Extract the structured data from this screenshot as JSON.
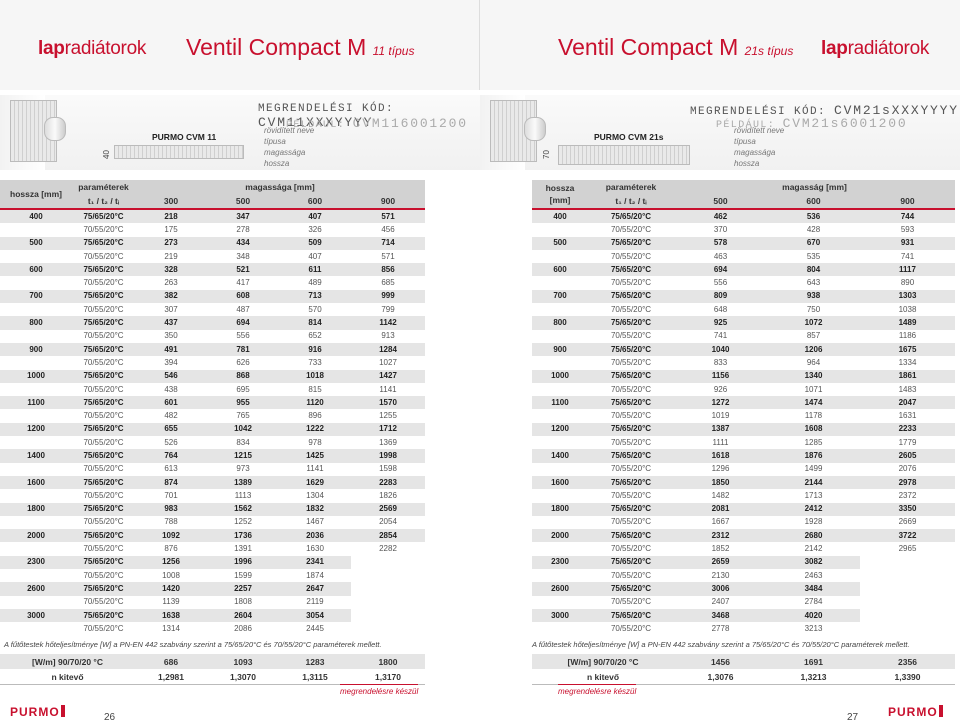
{
  "left": {
    "brand_bold": "lap",
    "brand_rest": "radiátorok",
    "title_main": "Ventil Compact M",
    "title_type": "11 típus",
    "order_label": "MEGRENDELÉSI KÓD:",
    "order_code": "CVM11XXXYYYY",
    "example_label": "PÉLDÁUL:",
    "example_code": "CVM116001200",
    "model": "PURMO CVM 11",
    "code_notes": [
      "rövidített neve",
      "típusa",
      "magassága",
      "hossza"
    ],
    "dim_label": "40",
    "head": {
      "length": "hossza [mm]",
      "param": "paraméterek",
      "tsub": "t₁ / t₂ / tᵢ",
      "height": "magassága [mm]"
    },
    "heights": [
      "300",
      "500",
      "600",
      "900"
    ],
    "rows": [
      {
        "len": "400",
        "p75": "75/65/20°C",
        "v75": [
          "218",
          "347",
          "407",
          "571"
        ],
        "p70": "70/55/20°C",
        "v70": [
          "175",
          "278",
          "326",
          "456"
        ]
      },
      {
        "len": "500",
        "p75": "75/65/20°C",
        "v75": [
          "273",
          "434",
          "509",
          "714"
        ],
        "p70": "70/55/20°C",
        "v70": [
          "219",
          "348",
          "407",
          "571"
        ]
      },
      {
        "len": "600",
        "p75": "75/65/20°C",
        "v75": [
          "328",
          "521",
          "611",
          "856"
        ],
        "p70": "70/55/20°C",
        "v70": [
          "263",
          "417",
          "489",
          "685"
        ]
      },
      {
        "len": "700",
        "p75": "75/65/20°C",
        "v75": [
          "382",
          "608",
          "713",
          "999"
        ],
        "p70": "70/55/20°C",
        "v70": [
          "307",
          "487",
          "570",
          "799"
        ]
      },
      {
        "len": "800",
        "p75": "75/65/20°C",
        "v75": [
          "437",
          "694",
          "814",
          "1142"
        ],
        "p70": "70/55/20°C",
        "v70": [
          "350",
          "556",
          "652",
          "913"
        ]
      },
      {
        "len": "900",
        "p75": "75/65/20°C",
        "v75": [
          "491",
          "781",
          "916",
          "1284"
        ],
        "p70": "70/55/20°C",
        "v70": [
          "394",
          "626",
          "733",
          "1027"
        ]
      },
      {
        "len": "1000",
        "p75": "75/65/20°C",
        "v75": [
          "546",
          "868",
          "1018",
          "1427"
        ],
        "p70": "70/55/20°C",
        "v70": [
          "438",
          "695",
          "815",
          "1141"
        ]
      },
      {
        "len": "1100",
        "p75": "75/65/20°C",
        "v75": [
          "601",
          "955",
          "1120",
          "1570"
        ],
        "p70": "70/55/20°C",
        "v70": [
          "482",
          "765",
          "896",
          "1255"
        ]
      },
      {
        "len": "1200",
        "p75": "75/65/20°C",
        "v75": [
          "655",
          "1042",
          "1222",
          "1712"
        ],
        "p70": "70/55/20°C",
        "v70": [
          "526",
          "834",
          "978",
          "1369"
        ]
      },
      {
        "len": "1400",
        "p75": "75/65/20°C",
        "v75": [
          "764",
          "1215",
          "1425",
          "1998"
        ],
        "p70": "70/55/20°C",
        "v70": [
          "613",
          "973",
          "1141",
          "1598"
        ]
      },
      {
        "len": "1600",
        "p75": "75/65/20°C",
        "v75": [
          "874",
          "1389",
          "1629",
          "2283"
        ],
        "p70": "70/55/20°C",
        "v70": [
          "701",
          "1113",
          "1304",
          "1826"
        ]
      },
      {
        "len": "1800",
        "p75": "75/65/20°C",
        "v75": [
          "983",
          "1562",
          "1832",
          "2569"
        ],
        "p70": "70/55/20°C",
        "v70": [
          "788",
          "1252",
          "1467",
          "2054"
        ]
      },
      {
        "len": "2000",
        "p75": "75/65/20°C",
        "v75": [
          "1092",
          "1736",
          "2036",
          "2854"
        ],
        "p70": "70/55/20°C",
        "v70": [
          "876",
          "1391",
          "1630",
          "2282"
        ]
      },
      {
        "len": "2300",
        "p75": "75/65/20°C",
        "v75": [
          "1256",
          "1996",
          "2341",
          ""
        ],
        "p70": "70/55/20°C",
        "v70": [
          "1008",
          "1599",
          "1874",
          ""
        ]
      },
      {
        "len": "2600",
        "p75": "75/65/20°C",
        "v75": [
          "1420",
          "2257",
          "2647",
          ""
        ],
        "p70": "70/55/20°C",
        "v70": [
          "1139",
          "1808",
          "2119",
          ""
        ]
      },
      {
        "len": "3000",
        "p75": "75/65/20°C",
        "v75": [
          "1638",
          "2604",
          "3054",
          ""
        ],
        "p70": "70/55/20°C",
        "v70": [
          "1314",
          "2086",
          "2445",
          ""
        ]
      }
    ],
    "note": "A fűtőtestek hőteljesítménye [W] a PN-EN 442 szabvány szerint a 75/65/20°C és 70/55/20°C paraméterek mellett.",
    "footer": {
      "w_label": "[W/m] 90/70/20 °C",
      "w_vals": [
        "686",
        "1093",
        "1283",
        "1800"
      ],
      "n_label": "n kitevő",
      "n_vals": [
        "1,2981",
        "1,3070",
        "1,3115",
        "1,3170"
      ]
    },
    "on_demand": "megrendelésre készül",
    "logo": "PURMO",
    "page_no": "26"
  },
  "right": {
    "brand_bold": "lap",
    "brand_rest": "radiátorok",
    "title_main": "Ventil Compact M",
    "title_type": "21s típus",
    "order_label": "MEGRENDELÉSI KÓD:",
    "order_code": "CVM21sXXXYYYY",
    "example_label": "PÉLDÁUL:",
    "example_code": "CVM21s6001200",
    "model": "PURMO CVM 21s",
    "code_notes": [
      "rövidített neve",
      "típusa",
      "magassága",
      "hossza"
    ],
    "dim_label": "70",
    "head": {
      "length": "hossza [mm]",
      "param": "paraméterek",
      "tsub": "t₁ / t₂ / tᵢ",
      "height": "magasság [mm]"
    },
    "heights": [
      "500",
      "600",
      "900"
    ],
    "rows": [
      {
        "len": "400",
        "p75": "75/65/20°C",
        "v75": [
          "462",
          "536",
          "744"
        ],
        "p70": "70/55/20°C",
        "v70": [
          "370",
          "428",
          "593"
        ]
      },
      {
        "len": "500",
        "p75": "75/65/20°C",
        "v75": [
          "578",
          "670",
          "931"
        ],
        "p70": "70/55/20°C",
        "v70": [
          "463",
          "535",
          "741"
        ]
      },
      {
        "len": "600",
        "p75": "75/65/20°C",
        "v75": [
          "694",
          "804",
          "1117"
        ],
        "p70": "70/55/20°C",
        "v70": [
          "556",
          "643",
          "890"
        ]
      },
      {
        "len": "700",
        "p75": "75/65/20°C",
        "v75": [
          "809",
          "938",
          "1303"
        ],
        "p70": "70/55/20°C",
        "v70": [
          "648",
          "750",
          "1038"
        ]
      },
      {
        "len": "800",
        "p75": "75/65/20°C",
        "v75": [
          "925",
          "1072",
          "1489"
        ],
        "p70": "70/55/20°C",
        "v70": [
          "741",
          "857",
          "1186"
        ]
      },
      {
        "len": "900",
        "p75": "75/65/20°C",
        "v75": [
          "1040",
          "1206",
          "1675"
        ],
        "p70": "70/55/20°C",
        "v70": [
          "833",
          "964",
          "1334"
        ]
      },
      {
        "len": "1000",
        "p75": "75/65/20°C",
        "v75": [
          "1156",
          "1340",
          "1861"
        ],
        "p70": "70/55/20°C",
        "v70": [
          "926",
          "1071",
          "1483"
        ]
      },
      {
        "len": "1100",
        "p75": "75/65/20°C",
        "v75": [
          "1272",
          "1474",
          "2047"
        ],
        "p70": "70/55/20°C",
        "v70": [
          "1019",
          "1178",
          "1631"
        ]
      },
      {
        "len": "1200",
        "p75": "75/65/20°C",
        "v75": [
          "1387",
          "1608",
          "2233"
        ],
        "p70": "70/55/20°C",
        "v70": [
          "1111",
          "1285",
          "1779"
        ]
      },
      {
        "len": "1400",
        "p75": "75/65/20°C",
        "v75": [
          "1618",
          "1876",
          "2605"
        ],
        "p70": "70/55/20°C",
        "v70": [
          "1296",
          "1499",
          "2076"
        ]
      },
      {
        "len": "1600",
        "p75": "75/65/20°C",
        "v75": [
          "1850",
          "2144",
          "2978"
        ],
        "p70": "70/55/20°C",
        "v70": [
          "1482",
          "1713",
          "2372"
        ]
      },
      {
        "len": "1800",
        "p75": "75/65/20°C",
        "v75": [
          "2081",
          "2412",
          "3350"
        ],
        "p70": "70/55/20°C",
        "v70": [
          "1667",
          "1928",
          "2669"
        ]
      },
      {
        "len": "2000",
        "p75": "75/65/20°C",
        "v75": [
          "2312",
          "2680",
          "3722"
        ],
        "p70": "70/55/20°C",
        "v70": [
          "1852",
          "2142",
          "2965"
        ]
      },
      {
        "len": "2300",
        "p75": "75/65/20°C",
        "v75": [
          "2659",
          "3082",
          ""
        ],
        "p70": "70/55/20°C",
        "v70": [
          "2130",
          "2463",
          ""
        ]
      },
      {
        "len": "2600",
        "p75": "75/65/20°C",
        "v75": [
          "3006",
          "3484",
          ""
        ],
        "p70": "70/55/20°C",
        "v70": [
          "2407",
          "2784",
          ""
        ]
      },
      {
        "len": "3000",
        "p75": "75/65/20°C",
        "v75": [
          "3468",
          "4020",
          ""
        ],
        "p70": "70/55/20°C",
        "v70": [
          "2778",
          "3213",
          ""
        ]
      }
    ],
    "note": "A fűtőtestek hőteljesítménye [W] a PN-EN 442 szabvány szerint a 75/65/20°C és 70/55/20°C paraméterek mellett.",
    "footer": {
      "w_label": "[W/m] 90/70/20 °C",
      "w_vals": [
        "1456",
        "1691",
        "2356"
      ],
      "n_label": "n kitevő",
      "n_vals": [
        "1,3076",
        "1,3213",
        "1,3390"
      ]
    },
    "on_demand": "megrendelésre készül",
    "logo": "PURMO",
    "page_no": "27"
  }
}
